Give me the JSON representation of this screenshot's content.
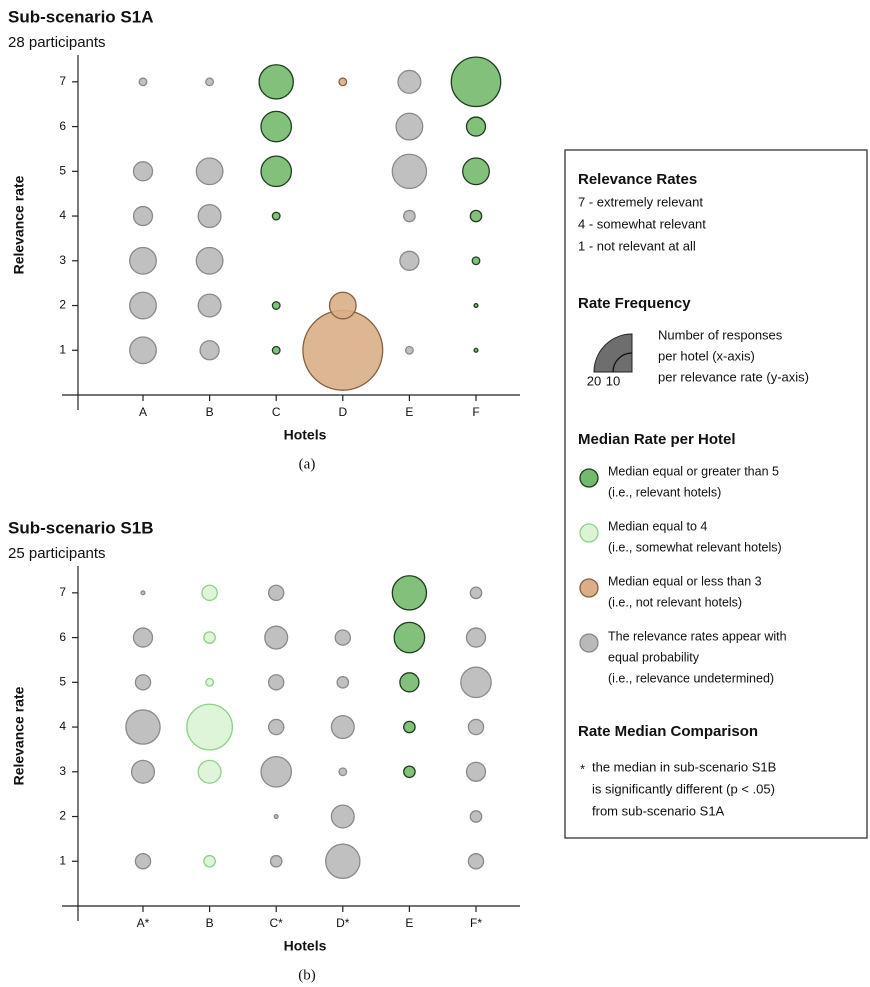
{
  "chart_data": [
    {
      "type": "bubble",
      "title": "Sub-scenario S1A",
      "subtitle": "28 participants",
      "caption": "(a)",
      "xlabel": "Hotels",
      "ylabel": "Relevance rate",
      "ylim": [
        0,
        7.6
      ],
      "yticks": [
        1,
        2,
        3,
        4,
        5,
        6,
        7
      ],
      "columns": [
        {
          "name": "A",
          "color": "#b9b9b9",
          "edge_color": "#8a8a8a",
          "sizes": [
            7,
            7,
            7,
            5,
            5,
            null,
            2
          ]
        },
        {
          "name": "B",
          "color": "#b9b9b9",
          "edge_color": "#8a8a8a",
          "sizes": [
            5,
            6,
            7,
            6,
            7,
            null,
            2
          ]
        },
        {
          "name": "C",
          "color": "#74b96d",
          "edge_color": "#213d20",
          "sizes": [
            2,
            2,
            null,
            2,
            8,
            8,
            9
          ]
        },
        {
          "name": "D",
          "color": "#d9ae88",
          "edge_color": "#86603f",
          "sizes": [
            21,
            7,
            null,
            null,
            null,
            null,
            2
          ]
        },
        {
          "name": "E",
          "color": "#b9b9b9",
          "edge_color": "#8a8a8a",
          "sizes": [
            2,
            null,
            5,
            3,
            9,
            7,
            6
          ]
        },
        {
          "name": "F",
          "color": "#74b96d",
          "edge_color": "#213d20",
          "sizes": [
            1,
            1,
            2,
            3,
            7,
            5,
            13
          ]
        }
      ]
    },
    {
      "type": "bubble",
      "title": "Sub-scenario S1B",
      "subtitle": "25 participants",
      "caption": "(b)",
      "xlabel": "Hotels",
      "ylabel": "Relevance rate",
      "ylim": [
        0,
        7.6
      ],
      "yticks": [
        1,
        2,
        3,
        4,
        5,
        6,
        7
      ],
      "columns": [
        {
          "name": "A*",
          "color": "#b9b9b9",
          "edge_color": "#8a8a8a",
          "sizes": [
            4,
            null,
            6,
            9,
            4,
            5,
            1
          ]
        },
        {
          "name": "B",
          "color": "#dcf4d5",
          "edge_color": "#8fd089",
          "sizes": [
            3,
            null,
            6,
            12,
            2,
            3,
            4
          ]
        },
        {
          "name": "C*",
          "color": "#b9b9b9",
          "edge_color": "#8a8a8a",
          "sizes": [
            3,
            1,
            8,
            4,
            4,
            6,
            4
          ]
        },
        {
          "name": "D*",
          "color": "#b9b9b9",
          "edge_color": "#8a8a8a",
          "sizes": [
            9,
            6,
            2,
            6,
            3,
            4,
            null
          ]
        },
        {
          "name": "E",
          "color": "#74b96d",
          "edge_color": "#213d20",
          "sizes": [
            null,
            null,
            3,
            3,
            5,
            8,
            9
          ]
        },
        {
          "name": "F*",
          "color": "#b9b9b9",
          "edge_color": "#8a8a8a",
          "sizes": [
            4,
            3,
            5,
            4,
            8,
            5,
            3
          ]
        }
      ]
    }
  ],
  "legend": {
    "rates": {
      "title": "Relevance Rates",
      "lines": [
        "7 - extremely relevant",
        "4 - somewhat relevant",
        "1 - not relevant at all"
      ]
    },
    "frequency": {
      "title": "Rate Frequency",
      "ticks": [
        20,
        10
      ],
      "color": "#6e6e6e",
      "lines": [
        "Number of responses",
        "per hotel (x-axis)",
        "per relevance rate (y-axis)"
      ]
    },
    "median": {
      "title": "Median Rate per Hotel",
      "items": [
        {
          "color": "#74b96d",
          "edge_color": "#213d20",
          "lines": [
            "Median equal or greater than 5",
            "(i.e., relevant hotels)"
          ]
        },
        {
          "color": "#dcf4d5",
          "edge_color": "#8fd089",
          "lines": [
            "Median equal to 4",
            "(i.e., somewhat relevant hotels)"
          ]
        },
        {
          "color": "#d9ae88",
          "edge_color": "#86603f",
          "lines": [
            "Median equal or less than 3",
            "(i.e., not relevant hotels)"
          ]
        },
        {
          "color": "#b9b9b9",
          "edge_color": "#8a8a8a",
          "lines": [
            "The relevance rates appear with",
            "equal probability",
            "(i.e., relevance undetermined)"
          ]
        }
      ]
    },
    "comparison": {
      "title": "Rate Median Comparison",
      "marker": "*",
      "lines": [
        "the median in sub-scenario S1B",
        "is significantly different (p < .05)",
        "from sub-scenario S1A"
      ]
    }
  }
}
